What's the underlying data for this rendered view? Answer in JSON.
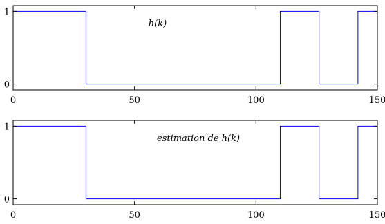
{
  "colors": {
    "line": "#0000ff",
    "axes": "#000000",
    "background": "#ffffff"
  },
  "chart_data": [
    {
      "type": "line",
      "title": "h(k)",
      "xlabel": "",
      "ylabel": "",
      "xlim": [
        0,
        150
      ],
      "ylim": [
        -0.08,
        1.08
      ],
      "xticks": [
        0,
        50,
        100,
        150
      ],
      "yticks": [
        0,
        1
      ],
      "grid": false,
      "series": [
        {
          "x": [
            0,
            30,
            30,
            110,
            110,
            126,
            126,
            142,
            142,
            150
          ],
          "y": [
            1,
            1,
            0,
            0,
            1,
            1,
            0,
            0,
            1,
            1
          ]
        }
      ]
    },
    {
      "type": "line",
      "title": "estimation de h(k)",
      "xlabel": "",
      "ylabel": "",
      "xlim": [
        0,
        150
      ],
      "ylim": [
        -0.08,
        1.08
      ],
      "xticks": [
        0,
        50,
        100,
        150
      ],
      "yticks": [
        0,
        1
      ],
      "grid": false,
      "series": [
        {
          "x": [
            0,
            30,
            30,
            110,
            110,
            126,
            126,
            142,
            142,
            150
          ],
          "y": [
            1,
            1,
            0,
            0,
            1,
            1,
            0,
            0,
            1,
            1
          ]
        }
      ]
    }
  ]
}
